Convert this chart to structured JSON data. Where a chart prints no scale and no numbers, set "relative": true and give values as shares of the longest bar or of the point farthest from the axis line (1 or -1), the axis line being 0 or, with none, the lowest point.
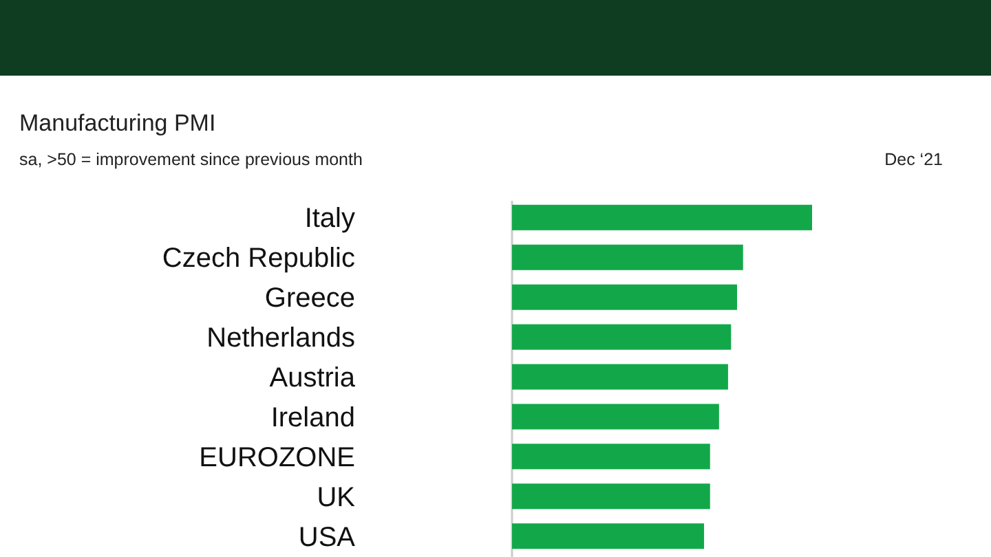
{
  "chart_data": {
    "type": "bar",
    "orientation": "horizontal",
    "relative": true,
    "title": "Manufacturing PMI",
    "subtitle": "sa, >50 = improvement since previous month",
    "annotations": [
      "Dec ‘21"
    ],
    "categories": [
      "Italy",
      "Czech Republic",
      "Greece",
      "Netherlands",
      "Austria",
      "Ireland",
      "EUROZONE",
      "UK",
      "USA"
    ],
    "values": [
      1,
      0.77,
      0.75,
      0.73,
      0.72,
      0.69,
      0.66,
      0.66,
      0.64
    ],
    "color": "#12a84a"
  }
}
